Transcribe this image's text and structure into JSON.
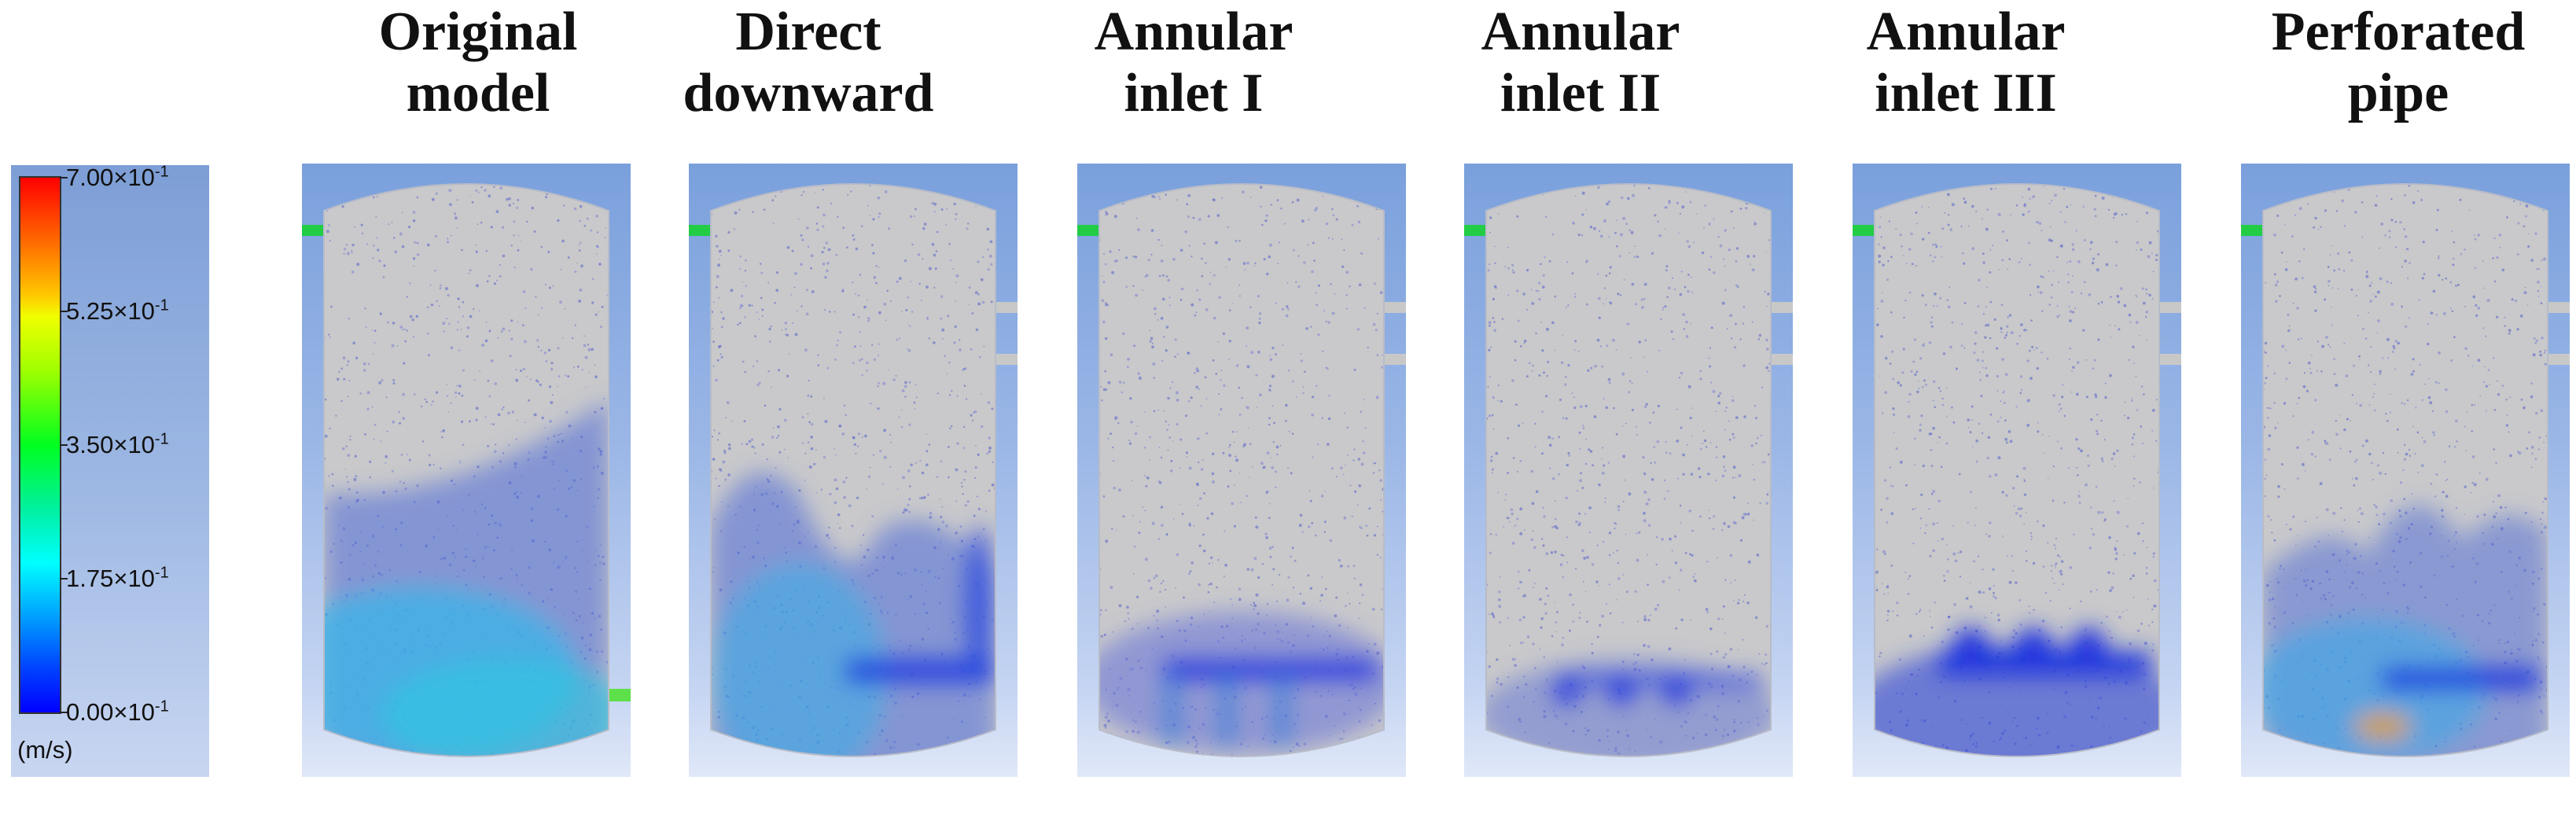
{
  "panels": [
    {
      "title_line1": "Original",
      "title_line2": "model",
      "scheme": "original"
    },
    {
      "title_line1": "Direct",
      "title_line2": "downward",
      "scheme": "direct"
    },
    {
      "title_line1": "Annular",
      "title_line2": "inlet I",
      "scheme": "annular1"
    },
    {
      "title_line1": "Annular",
      "title_line2": "inlet II",
      "scheme": "annular2"
    },
    {
      "title_line1": "Annular",
      "title_line2": "inlet III",
      "scheme": "annular3"
    },
    {
      "title_line1": "Perforated",
      "title_line2": "pipe",
      "scheme": "perforated"
    }
  ],
  "legend": {
    "unit": "(m/s)",
    "ticks": [
      {
        "mantissa": "7.00×10",
        "exponent": "-1",
        "value": 0.7
      },
      {
        "mantissa": "5.25×10",
        "exponent": "-1",
        "value": 0.525
      },
      {
        "mantissa": "3.50×10",
        "exponent": "-1",
        "value": 0.35
      },
      {
        "mantissa": "1.75×10",
        "exponent": "-1",
        "value": 0.175
      },
      {
        "mantissa": "0.00×10",
        "exponent": "-1",
        "value": 0.0
      }
    ],
    "colors": {
      "max": "#ff0000",
      "high": "#ffc800",
      "mid": "#00ff20",
      "low": "#00ffff",
      "min": "#0000ff"
    }
  }
}
